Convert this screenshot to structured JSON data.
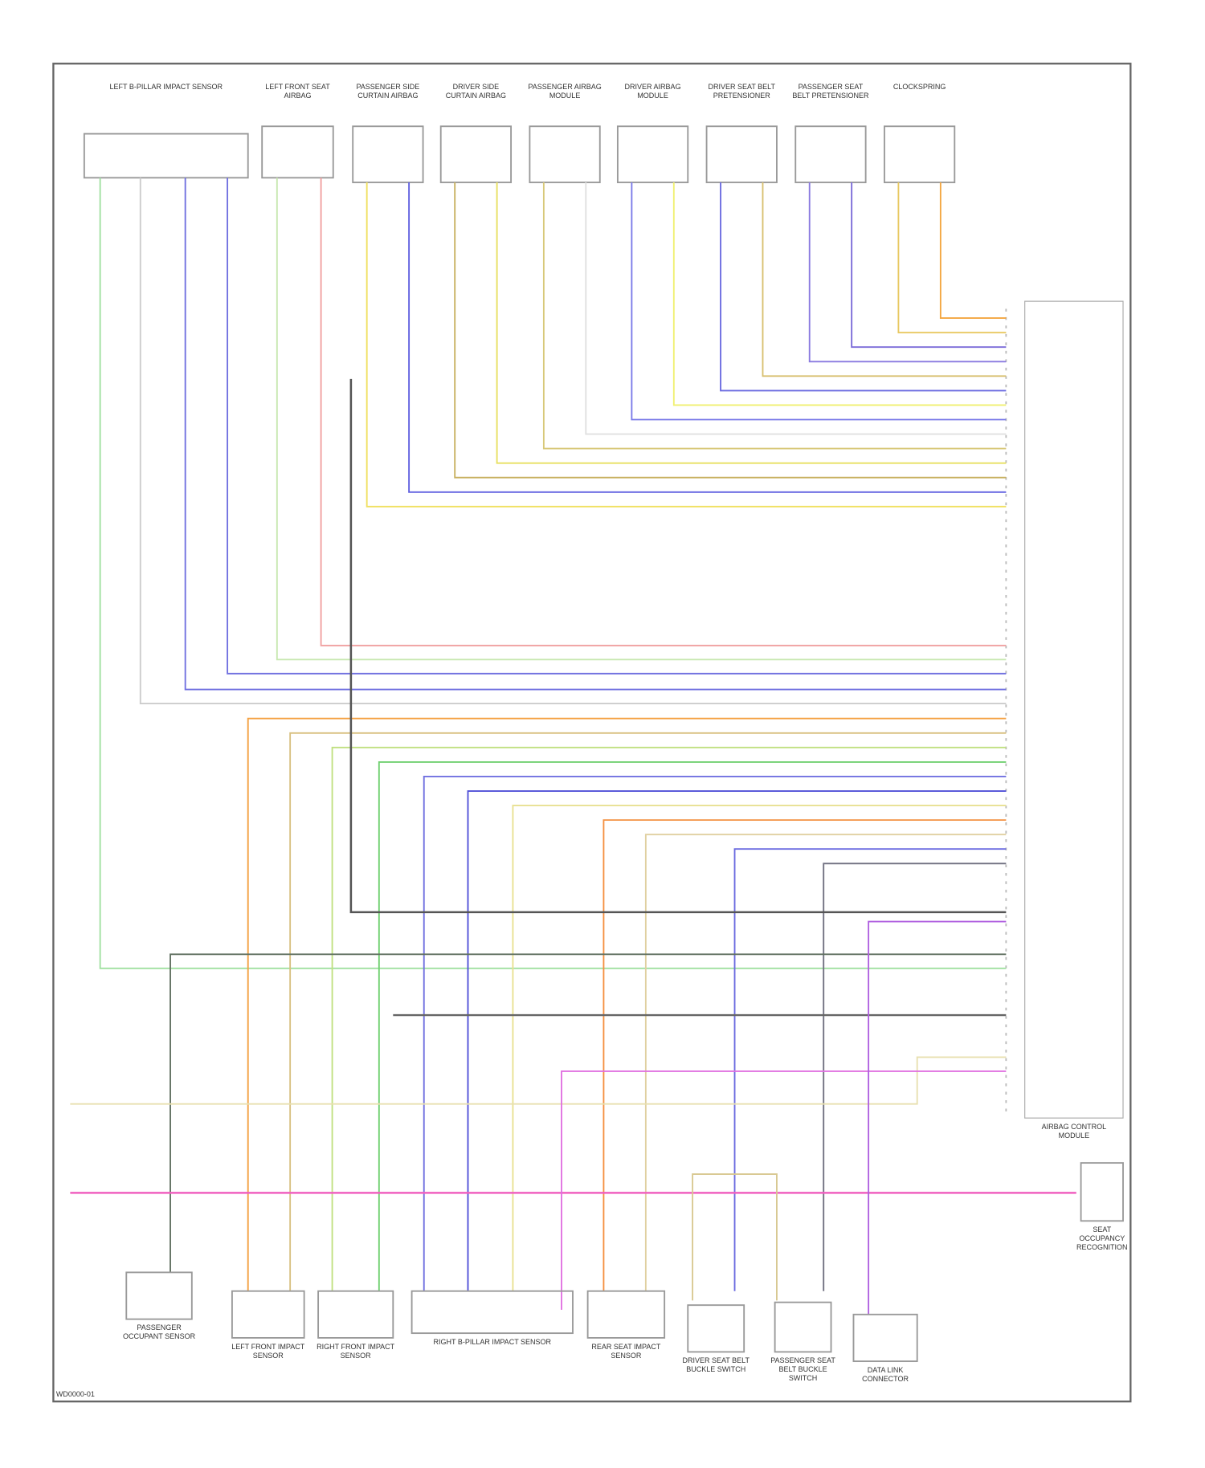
{
  "diagram": {
    "top_components": [
      {
        "label": "LEFT B-PILLAR IMPACT SENSOR"
      },
      {
        "label": "LEFT FRONT SEAT AIRBAG"
      },
      {
        "label": "PASSENGER SIDE CURTAIN AIRBAG"
      },
      {
        "label": "DRIVER SIDE CURTAIN AIRBAG"
      },
      {
        "label": "PASSENGER AIRBAG MODULE"
      },
      {
        "label": "DRIVER AIRBAG MODULE"
      },
      {
        "label": "DRIVER SEAT BELT PRETENSIONER"
      },
      {
        "label": "PASSENGER SEAT BELT PRETENSIONER"
      },
      {
        "label": "CLOCKSPRING"
      }
    ],
    "control_module": {
      "label": "AIRBAG CONTROL MODULE"
    },
    "bottom_components": [
      {
        "label": "PASSENGER OCCUPANT SENSOR"
      },
      {
        "label": "LEFT FRONT IMPACT SENSOR"
      },
      {
        "label": "RIGHT FRONT IMPACT SENSOR"
      },
      {
        "label": "RIGHT B-PILLAR IMPACT SENSOR"
      },
      {
        "label": "REAR SEAT IMPACT SENSOR"
      },
      {
        "label": "DRIVER SEAT BELT BUCKLE SWITCH"
      },
      {
        "label": "PASSENGER SEAT BELT BUCKLE SWITCH"
      },
      {
        "label": "DATA LINK CONNECTOR"
      },
      {
        "label": "SEAT OCCUPANCY RECOGNITION"
      }
    ],
    "footer": "WD0000-01"
  }
}
